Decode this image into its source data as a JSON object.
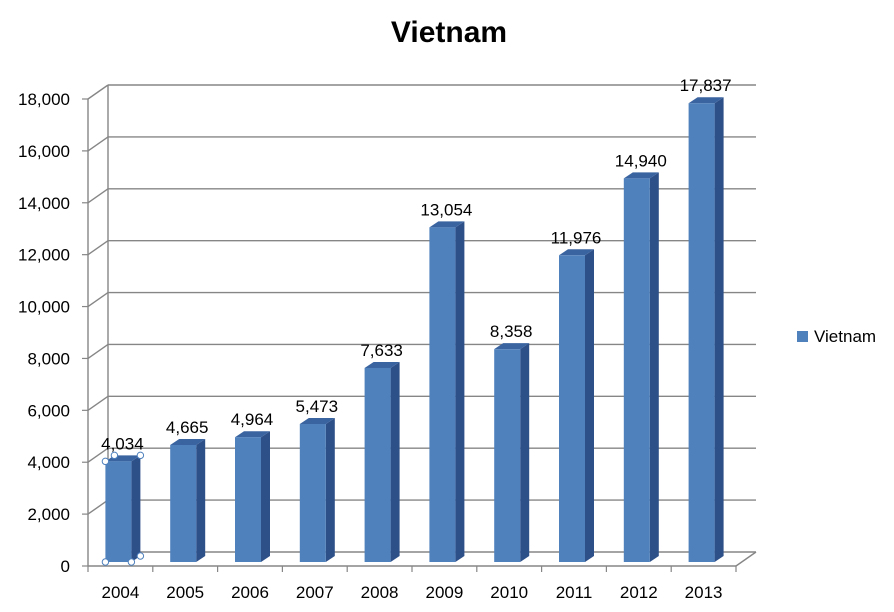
{
  "chart_data": {
    "type": "bar",
    "title": "Vietnam",
    "categories": [
      "2004",
      "2005",
      "2006",
      "2007",
      "2008",
      "2009",
      "2010",
      "2011",
      "2012",
      "2013"
    ],
    "series": [
      {
        "name": "Vietnam",
        "values": [
          4034,
          4665,
          4964,
          5473,
          7633,
          13054,
          8358,
          11976,
          14940,
          17837
        ],
        "data_labels": [
          "4,034",
          "4,665",
          "4,964",
          "5,473",
          "7,633",
          "13,054",
          "8,358",
          "11,976",
          "14,940",
          "17,837"
        ]
      }
    ],
    "ylim": [
      0,
      18000
    ],
    "ytick_labels": [
      "0",
      "2,000",
      "4,000",
      "6,000",
      "8,000",
      "10,000",
      "12,000",
      "14,000",
      "16,000",
      "18,000"
    ],
    "grid": true,
    "legend_position": "right",
    "bar_style": "3d-column",
    "colors": {
      "bar_front": "#4F81BD",
      "bar_side": "#2E5089",
      "bar_top": "#3A64A0",
      "gridline": "#868686",
      "selection_handle": "#4F81BD"
    }
  }
}
